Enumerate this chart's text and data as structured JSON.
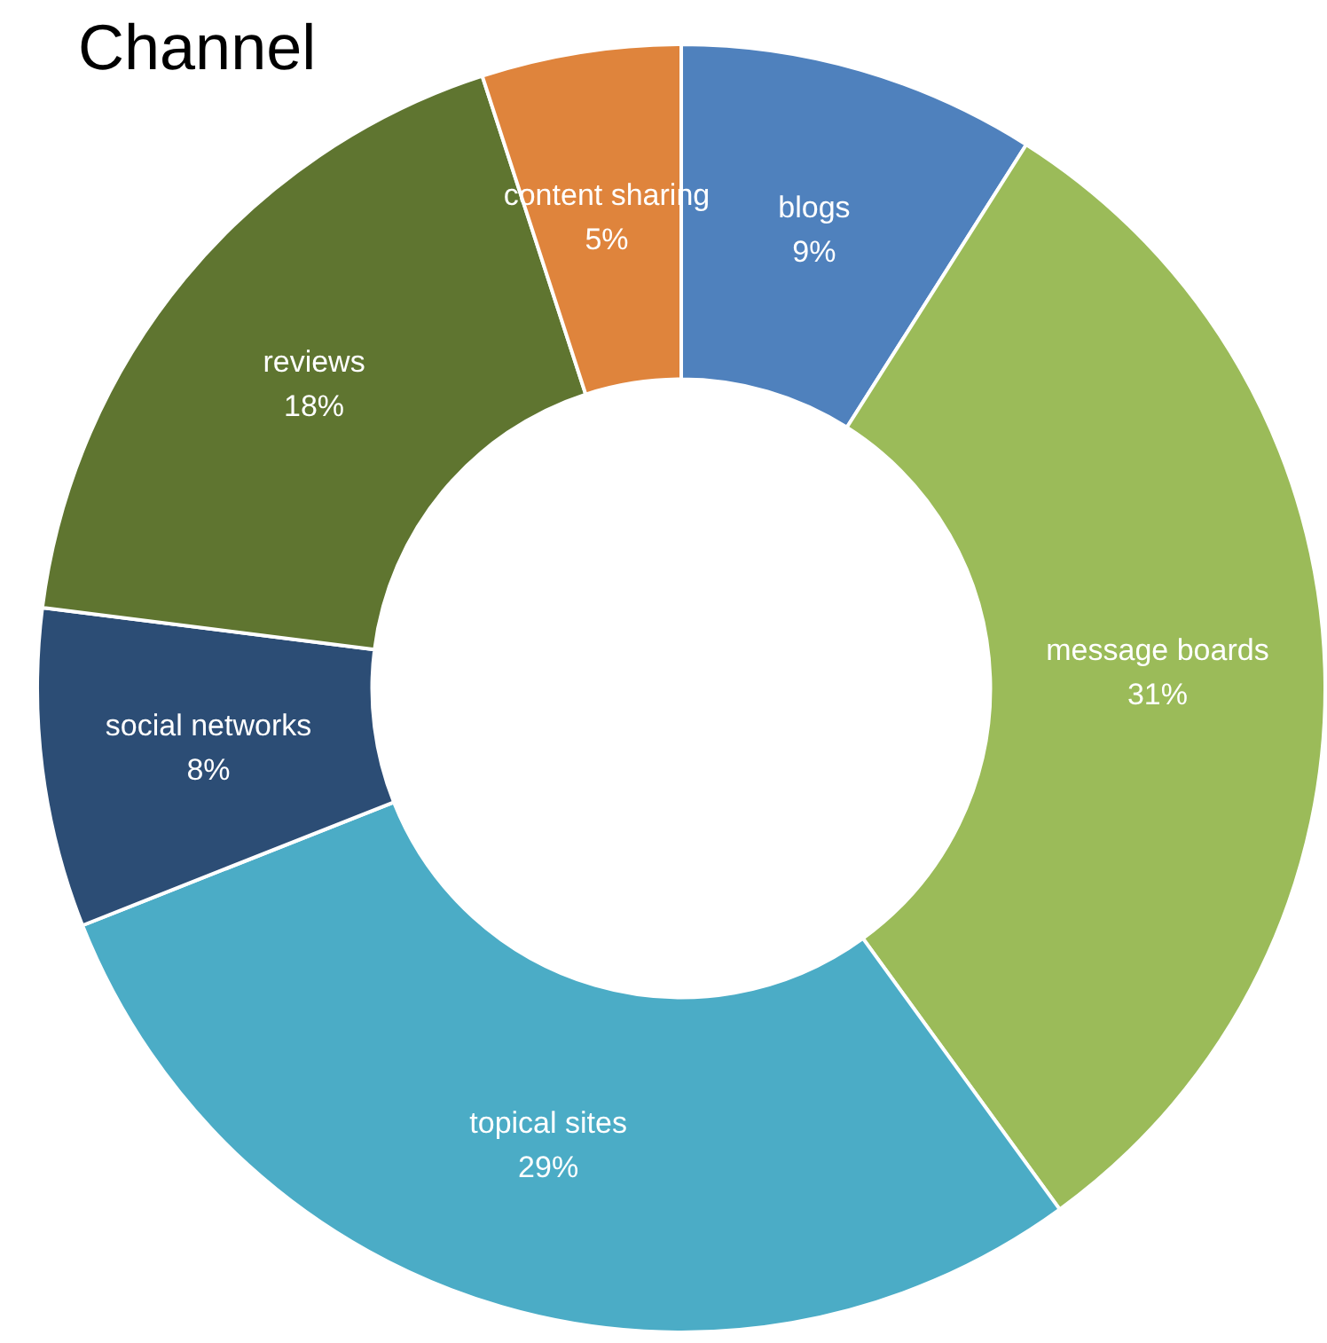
{
  "chart_data": {
    "type": "donut",
    "title": "Channel",
    "categories": [
      "blogs",
      "message boards",
      "topical sites",
      "social networks",
      "reviews",
      "content sharing"
    ],
    "values": [
      9,
      31,
      29,
      8,
      18,
      5
    ],
    "value_labels": [
      "9%",
      "31%",
      "29%",
      "8%",
      "18%",
      "5%"
    ],
    "colors": [
      "#4f81bd",
      "#9bbb59",
      "#4bacc6",
      "#2c4d75",
      "#5f7530",
      "#df843c"
    ],
    "legend": false
  }
}
